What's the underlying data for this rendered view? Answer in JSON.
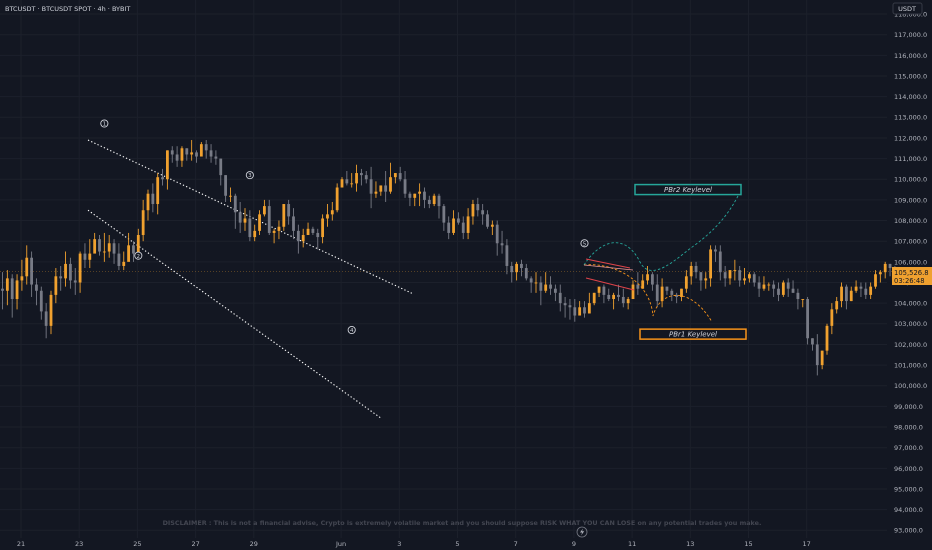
{
  "header": {
    "symbol": "BTCUSDT · BTCUSDT SPOT · 4h · BYBIT",
    "currency": "USDT"
  },
  "price_label": {
    "price": "105,526.8",
    "countdown": "03:26:48"
  },
  "annotations": {
    "wave_labels": [
      "1",
      "2",
      "3",
      "4",
      "5"
    ],
    "pbr2_label": "PBr2 Keylevel",
    "pbr1_label": "PBr1 Keylevel",
    "disclaimer": "DISCLAIMER : This is not a financial advise, Crypto is extremely volatile market and you should suppose RISK WHAT YOU CAN LOSE on any potential trades you make.",
    "lightning_icon": "lightning-icon"
  },
  "colors": {
    "background": "#131722",
    "bull_candle": "#f0a12f",
    "bear_candle": "#787b86",
    "pbr2": "#26a69a",
    "pbr1": "#f7931a",
    "arrow_red": "#e0444a",
    "text": "#b2b5be"
  },
  "chart_data": {
    "type": "candlestick",
    "y_axis": {
      "ticks": [
        93000,
        94000,
        95000,
        96000,
        97000,
        98000,
        99000,
        100000,
        101000,
        102000,
        103000,
        104000,
        105000,
        106000,
        107000,
        108000,
        109000,
        110000,
        111000,
        112000,
        113000,
        114000,
        115000,
        116000,
        117000,
        118000
      ],
      "tick_labels": [
        "93,000.0",
        "94,000.0",
        "95,000.0",
        "96,000.0",
        "97,000.0",
        "98,000.0",
        "99,000.0",
        "100,000.0",
        "101,000.0",
        "102,000.0",
        "103,000.0",
        "104,000.0",
        "105,000.0",
        "106,000.0",
        "107,000.0",
        "108,000.0",
        "109,000.0",
        "110,000.0",
        "111,000.0",
        "112,000.0",
        "113,000.0",
        "114,000.0",
        "115,000.0",
        "116,000.0",
        "117,000.0",
        "118,000.0"
      ]
    },
    "x_axis": {
      "tick_labels": [
        "21",
        "23",
        "25",
        "27",
        "29",
        "Jun",
        "3",
        "5",
        "7",
        "9",
        "11",
        "13",
        "15",
        "17"
      ]
    },
    "last_price": 105526.8,
    "channel": {
      "upper": [
        [
          0.0,
          111900
        ],
        [
          11.17,
          104450
        ]
      ],
      "lower": [
        [
          0.0,
          108500
        ],
        [
          10.05,
          98450
        ]
      ]
    },
    "targets": {
      "pbr2": 109500,
      "pbr1": 102500
    },
    "candles": [
      [
        104700,
        104600,
        105500,
        103700
      ],
      [
        104600,
        105200,
        105600,
        103900
      ],
      [
        105200,
        104200,
        105400,
        103300
      ],
      [
        104200,
        105100,
        105400,
        103700
      ],
      [
        105100,
        105300,
        106100,
        104600
      ],
      [
        105300,
        106200,
        106800,
        104900
      ],
      [
        106200,
        104900,
        106500,
        104300
      ],
      [
        104900,
        104600,
        105200,
        103900
      ],
      [
        104600,
        103600,
        104800,
        103200
      ],
      [
        103600,
        102900,
        104000,
        102300
      ],
      [
        102900,
        104400,
        104600,
        102500
      ],
      [
        104400,
        105300,
        105700,
        104000
      ],
      [
        105300,
        105200,
        105800,
        104600
      ],
      [
        105200,
        105900,
        106500,
        104800
      ],
      [
        105900,
        105100,
        106200,
        104700
      ],
      [
        105100,
        105000,
        105700,
        104400
      ],
      [
        105000,
        106400,
        106500,
        104500
      ],
      [
        106400,
        106100,
        106900,
        105700
      ],
      [
        106100,
        106400,
        107100,
        105700
      ],
      [
        106400,
        107100,
        107400,
        106600
      ],
      [
        107100,
        106500,
        107300,
        106300
      ],
      [
        106500,
        106500,
        107400,
        106000
      ],
      [
        106500,
        106900,
        107300,
        106200
      ],
      [
        106900,
        106400,
        107100,
        105900
      ],
      [
        106400,
        105800,
        106900,
        105600
      ],
      [
        105800,
        106000,
        106500,
        105600
      ],
      [
        106000,
        106800,
        107400,
        106300
      ],
      [
        106800,
        106400,
        107000,
        106000
      ],
      [
        106400,
        107300,
        107600,
        106900
      ],
      [
        107300,
        108500,
        109000,
        107000
      ],
      [
        108500,
        109300,
        109500,
        108000
      ],
      [
        109300,
        108800,
        109800,
        108400
      ],
      [
        108800,
        110100,
        110300,
        108300
      ],
      [
        110100,
        110000,
        110500,
        109700
      ],
      [
        110000,
        111400,
        111400,
        109500
      ],
      [
        111400,
        111200,
        111600,
        110800
      ],
      [
        111200,
        110900,
        111600,
        110600
      ],
      [
        110900,
        111500,
        111600,
        110600
      ],
      [
        111500,
        111200,
        111500,
        110900
      ],
      [
        111200,
        111300,
        111900,
        110900
      ],
      [
        111300,
        111100,
        111400,
        110800
      ],
      [
        111100,
        111700,
        111800,
        111300
      ],
      [
        111700,
        111400,
        111900,
        111000
      ],
      [
        111400,
        111100,
        111700,
        110800
      ],
      [
        111100,
        111000,
        111400,
        110700
      ],
      [
        111000,
        110200,
        111000,
        109700
      ],
      [
        110200,
        109200,
        110200,
        108900
      ],
      [
        109200,
        109200,
        109600,
        108900
      ],
      [
        109200,
        108400,
        109300,
        107600
      ],
      [
        108400,
        107900,
        108900,
        107400
      ],
      [
        107900,
        108100,
        108600,
        107500
      ],
      [
        108100,
        107200,
        108500,
        107000
      ],
      [
        107200,
        107500,
        107800,
        107000
      ],
      [
        107500,
        108300,
        108500,
        107300
      ],
      [
        108300,
        108700,
        109000,
        108200
      ],
      [
        108700,
        107400,
        109000,
        107300
      ],
      [
        107400,
        107500,
        107600,
        106900
      ],
      [
        107500,
        107700,
        108000,
        107100
      ],
      [
        107700,
        108800,
        108800,
        107500
      ],
      [
        108800,
        108200,
        109000,
        107800
      ],
      [
        108200,
        107500,
        108600,
        107100
      ],
      [
        107500,
        107000,
        107800,
        106400
      ],
      [
        107000,
        107300,
        107600,
        106700
      ],
      [
        107300,
        107600,
        107900,
        107300
      ],
      [
        107600,
        107400,
        107700,
        107300
      ],
      [
        107400,
        107200,
        107600,
        106600
      ],
      [
        107200,
        108100,
        108300,
        106900
      ],
      [
        108100,
        108300,
        108800,
        107700
      ],
      [
        108300,
        108500,
        108900,
        108000
      ],
      [
        108500,
        109600,
        109800,
        108400
      ],
      [
        109600,
        110000,
        110100,
        109600
      ],
      [
        110000,
        109800,
        110400,
        109700
      ],
      [
        109800,
        109800,
        110300,
        109600
      ],
      [
        109800,
        110300,
        110700,
        109400
      ],
      [
        110300,
        110200,
        110500,
        109700
      ],
      [
        110200,
        110000,
        110400,
        109800
      ],
      [
        110000,
        109300,
        110600,
        108600
      ],
      [
        109300,
        109400,
        109900,
        109100
      ],
      [
        109400,
        109700,
        109700,
        109200
      ],
      [
        109700,
        109400,
        110400,
        108900
      ],
      [
        109400,
        110100,
        110800,
        109300
      ],
      [
        110100,
        110300,
        110300,
        109800
      ],
      [
        110300,
        110000,
        110600,
        109900
      ],
      [
        110000,
        109300,
        110400,
        109100
      ],
      [
        109300,
        109100,
        109400,
        108700
      ],
      [
        109100,
        109300,
        109300,
        108700
      ],
      [
        109300,
        109400,
        109800,
        108700
      ],
      [
        109400,
        109000,
        109600,
        108600
      ],
      [
        109000,
        108800,
        109200,
        108600
      ],
      [
        108800,
        109200,
        109300,
        108700
      ],
      [
        109200,
        108700,
        109300,
        108100
      ],
      [
        108700,
        107900,
        108800,
        107500
      ],
      [
        107900,
        107400,
        108200,
        107100
      ],
      [
        107400,
        108100,
        108500,
        107300
      ],
      [
        108100,
        107900,
        108400,
        107800
      ],
      [
        107900,
        107400,
        108200,
        107100
      ],
      [
        107400,
        108200,
        108600,
        107100
      ],
      [
        108200,
        108800,
        109000,
        107800
      ],
      [
        108800,
        108500,
        109100,
        108200
      ],
      [
        108500,
        108300,
        108800,
        107800
      ],
      [
        108300,
        107700,
        108500,
        107600
      ],
      [
        107700,
        107800,
        108000,
        107300
      ],
      [
        107800,
        106900,
        108000,
        106300
      ],
      [
        106900,
        106800,
        107500,
        106400
      ],
      [
        106800,
        105800,
        107100,
        105400
      ],
      [
        105800,
        105500,
        106000,
        105000
      ],
      [
        105500,
        105900,
        106000,
        105100
      ],
      [
        105900,
        105700,
        106100,
        105300
      ],
      [
        105700,
        105200,
        105900,
        105100
      ],
      [
        105200,
        105000,
        105300,
        104500
      ],
      [
        105000,
        105000,
        105500,
        104500
      ],
      [
        105000,
        104600,
        105300,
        103900
      ],
      [
        104600,
        104900,
        105500,
        104500
      ],
      [
        104900,
        104700,
        105300,
        104400
      ],
      [
        104700,
        104500,
        104900,
        104100
      ],
      [
        104500,
        104000,
        104900,
        103600
      ],
      [
        104000,
        103900,
        104300,
        103300
      ],
      [
        103900,
        103800,
        104200,
        103200
      ],
      [
        103800,
        103400,
        104200,
        103100
      ],
      [
        103400,
        103800,
        104100,
        103500
      ],
      [
        103800,
        103500,
        104100,
        103300
      ],
      [
        103500,
        104000,
        104500,
        103500
      ],
      [
        104000,
        104500,
        104500,
        103900
      ],
      [
        104500,
        104800,
        104800,
        104300
      ],
      [
        104800,
        104400,
        104900,
        104000
      ],
      [
        104400,
        104200,
        104700,
        104100
      ],
      [
        104200,
        104400,
        104500,
        103700
      ],
      [
        104400,
        104300,
        104900,
        104100
      ],
      [
        104300,
        104000,
        104700,
        103800
      ],
      [
        104000,
        104200,
        104300,
        103700
      ],
      [
        104200,
        104900,
        105100,
        104200
      ],
      [
        104900,
        104700,
        105500,
        104400
      ],
      [
        104700,
        105100,
        105400,
        104700
      ],
      [
        105100,
        105400,
        105800,
        104900
      ],
      [
        105400,
        104900,
        105500,
        104600
      ],
      [
        104900,
        104100,
        105400,
        103800
      ],
      [
        104100,
        104800,
        105200,
        103800
      ],
      [
        104800,
        104600,
        104800,
        104400
      ],
      [
        104600,
        104400,
        104700,
        104100
      ],
      [
        104400,
        104300,
        104500,
        104000
      ],
      [
        104300,
        104700,
        104700,
        104100
      ],
      [
        104700,
        105300,
        105600,
        104500
      ],
      [
        105300,
        105800,
        106000,
        104900
      ],
      [
        105800,
        105500,
        106000,
        105200
      ],
      [
        105500,
        105100,
        105500,
        104600
      ],
      [
        105100,
        105200,
        105500,
        104700
      ],
      [
        105200,
        106600,
        106800,
        104800
      ],
      [
        106600,
        106500,
        106800,
        106000
      ],
      [
        106500,
        105500,
        106800,
        105100
      ],
      [
        105500,
        105200,
        105800,
        104800
      ],
      [
        105200,
        105600,
        105600,
        104900
      ],
      [
        105600,
        105600,
        106100,
        105100
      ],
      [
        105600,
        105100,
        105800,
        104800
      ],
      [
        105100,
        105200,
        105700,
        104900
      ],
      [
        105200,
        105400,
        105500,
        105000
      ],
      [
        105400,
        105000,
        105500,
        104800
      ],
      [
        105000,
        104700,
        105300,
        104300
      ],
      [
        104700,
        104900,
        105300,
        104600
      ],
      [
        104900,
        104900,
        105000,
        104600
      ],
      [
        104900,
        104700,
        105100,
        104300
      ],
      [
        104700,
        104400,
        105000,
        104100
      ],
      [
        104400,
        105000,
        105100,
        104300
      ],
      [
        105000,
        104700,
        105200,
        104300
      ],
      [
        104700,
        104500,
        105100,
        104500
      ],
      [
        104500,
        104200,
        104700,
        103700
      ],
      [
        104200,
        104200,
        104200,
        103800
      ],
      [
        104200,
        102300,
        104300,
        102000
      ],
      [
        102300,
        102000,
        102300,
        101700
      ],
      [
        102000,
        101000,
        102500,
        100500
      ],
      [
        101000,
        101700,
        101700,
        100800
      ],
      [
        101700,
        102900,
        103000,
        101500
      ],
      [
        102900,
        103700,
        104000,
        102500
      ],
      [
        103700,
        104100,
        104300,
        103500
      ],
      [
        104100,
        104800,
        105000,
        103800
      ],
      [
        104800,
        104100,
        104900,
        103700
      ],
      [
        104100,
        104600,
        104800,
        104100
      ],
      [
        104600,
        104800,
        105100,
        104500
      ],
      [
        104800,
        104700,
        105000,
        104300
      ],
      [
        104700,
        104400,
        105000,
        104200
      ],
      [
        104400,
        104800,
        105000,
        104200
      ],
      [
        104800,
        105400,
        105600,
        104700
      ],
      [
        105400,
        105500,
        105600,
        105000
      ],
      [
        105500,
        105900,
        106000,
        105200
      ],
      [
        105900,
        105700,
        105900,
        105300
      ],
      [
        105700,
        105600,
        105800,
        105400
      ],
      [
        105600,
        105600,
        105700,
        105300
      ]
    ]
  }
}
